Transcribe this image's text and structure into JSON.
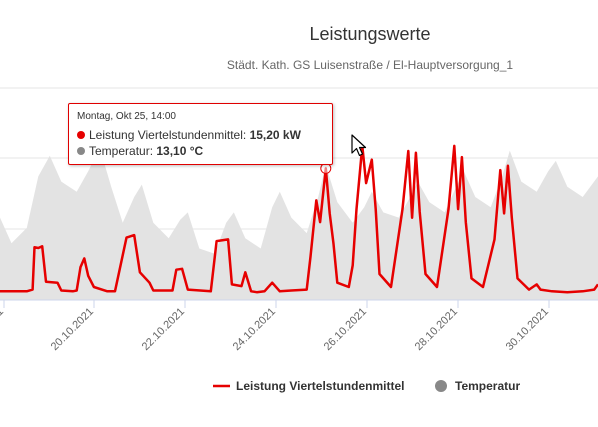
{
  "chart_data": {
    "type": "line",
    "title": "Leistungswerte",
    "subtitle": "Städt. Kath. GS Luisenstraße / El-Hauptversorgung_1",
    "x_tick_labels": [
      "20.10.2021",
      "22.10.2021",
      "24.10.2021",
      "26.10.2021",
      "28.10.2021",
      "30.10.2021"
    ],
    "x_start": "2021-10-18T12:00",
    "x_end": "2021-10-31T12:00",
    "grid": true,
    "series": [
      {
        "name": "Leistung Viertelstundenmittel",
        "unit": "kW",
        "color": "#e60000",
        "chart_type": "line",
        "points": [
          [
            "2021-10-18T12:00",
            1.0
          ],
          [
            "2021-10-18T18:00",
            1.0
          ],
          [
            "2021-10-18T20:00",
            1.0
          ],
          [
            "2021-10-19T02:00",
            1.0
          ],
          [
            "2021-10-19T05:00",
            1.2
          ],
          [
            "2021-10-19T06:00",
            6.1
          ],
          [
            "2021-10-19T08:00",
            6.0
          ],
          [
            "2021-10-19T10:00",
            6.2
          ],
          [
            "2021-10-19T12:00",
            2.1
          ],
          [
            "2021-10-19T18:00",
            2.0
          ],
          [
            "2021-10-19T20:00",
            1.1
          ],
          [
            "2021-10-20T02:00",
            1.0
          ],
          [
            "2021-10-20T04:00",
            1.1
          ],
          [
            "2021-10-20T06:00",
            3.8
          ],
          [
            "2021-10-20T08:00",
            4.8
          ],
          [
            "2021-10-20T10:00",
            2.8
          ],
          [
            "2021-10-20T13:00",
            1.5
          ],
          [
            "2021-10-20T20:00",
            1.0
          ],
          [
            "2021-10-21T00:00",
            1.0
          ],
          [
            "2021-10-21T06:00",
            7.2
          ],
          [
            "2021-10-21T10:00",
            7.5
          ],
          [
            "2021-10-21T13:00",
            3.2
          ],
          [
            "2021-10-21T18:00",
            2.0
          ],
          [
            "2021-10-21T20:00",
            1.1
          ],
          [
            "2021-10-22T06:00",
            1.1
          ],
          [
            "2021-10-22T08:00",
            3.5
          ],
          [
            "2021-10-22T11:00",
            3.6
          ],
          [
            "2021-10-22T14:00",
            1.2
          ],
          [
            "2021-10-23T02:00",
            1.0
          ],
          [
            "2021-10-23T05:00",
            6.8
          ],
          [
            "2021-10-23T11:00",
            7.0
          ],
          [
            "2021-10-23T13:00",
            1.8
          ],
          [
            "2021-10-23T18:00",
            1.6
          ],
          [
            "2021-10-23T20:00",
            3.2
          ],
          [
            "2021-10-23T23:00",
            1.0
          ],
          [
            "2021-10-24T02:00",
            0.9
          ],
          [
            "2021-10-24T06:00",
            1.0
          ],
          [
            "2021-10-24T10:00",
            2.0
          ],
          [
            "2021-10-24T14:00",
            1.0
          ],
          [
            "2021-10-24T20:00",
            1.1
          ],
          [
            "2021-10-25T04:00",
            1.2
          ],
          [
            "2021-10-25T06:00",
            5.0
          ],
          [
            "2021-10-25T09:00",
            11.5
          ],
          [
            "2021-10-25T11:00",
            9.0
          ],
          [
            "2021-10-25T14:00",
            15.2
          ],
          [
            "2021-10-25T16:00",
            10.0
          ],
          [
            "2021-10-25T18:00",
            6.5
          ],
          [
            "2021-10-25T20:00",
            2.0
          ],
          [
            "2021-10-26T02:00",
            1.5
          ],
          [
            "2021-10-26T04:00",
            4.0
          ],
          [
            "2021-10-26T06:00",
            10.5
          ],
          [
            "2021-10-26T09:00",
            17.8
          ],
          [
            "2021-10-26T11:00",
            13.5
          ],
          [
            "2021-10-26T14:00",
            16.2
          ],
          [
            "2021-10-26T16:00",
            10.5
          ],
          [
            "2021-10-26T18:00",
            3.0
          ],
          [
            "2021-10-27T00:00",
            1.5
          ],
          [
            "2021-10-27T06:00",
            10.5
          ],
          [
            "2021-10-27T09:00",
            17.2
          ],
          [
            "2021-10-27T11:00",
            9.5
          ],
          [
            "2021-10-27T13:00",
            17.0
          ],
          [
            "2021-10-27T15:00",
            10.2
          ],
          [
            "2021-10-27T18:00",
            3.0
          ],
          [
            "2021-10-28T00:00",
            1.5
          ],
          [
            "2021-10-28T06:00",
            10.5
          ],
          [
            "2021-10-28T09:00",
            17.8
          ],
          [
            "2021-10-28T11:00",
            10.5
          ],
          [
            "2021-10-28T13:00",
            16.5
          ],
          [
            "2021-10-28T15:00",
            9.0
          ],
          [
            "2021-10-28T18:00",
            2.5
          ],
          [
            "2021-10-29T00:00",
            1.5
          ],
          [
            "2021-10-29T06:00",
            7.0
          ],
          [
            "2021-10-29T09:00",
            15.0
          ],
          [
            "2021-10-29T11:00",
            10.0
          ],
          [
            "2021-10-29T13:00",
            15.5
          ],
          [
            "2021-10-29T15:00",
            9.5
          ],
          [
            "2021-10-29T18:00",
            2.5
          ],
          [
            "2021-10-30T00:00",
            1.2
          ],
          [
            "2021-10-30T04:00",
            1.8
          ],
          [
            "2021-10-30T06:00",
            1.2
          ],
          [
            "2021-10-30T12:00",
            1.0
          ],
          [
            "2021-10-30T20:00",
            0.9
          ],
          [
            "2021-10-31T04:00",
            1.0
          ],
          [
            "2021-10-31T10:00",
            1.2
          ],
          [
            "2021-10-31T12:00",
            1.8
          ]
        ]
      },
      {
        "name": "Temperatur",
        "unit": "°C",
        "color": "#888888",
        "chart_type": "area",
        "points": [
          [
            "2021-10-18T12:00",
            8.0
          ],
          [
            "2021-10-18T18:00",
            5.5
          ],
          [
            "2021-10-19T02:00",
            7.0
          ],
          [
            "2021-10-19T08:00",
            12.0
          ],
          [
            "2021-10-19T14:00",
            14.0
          ],
          [
            "2021-10-19T20:00",
            11.5
          ],
          [
            "2021-10-20T04:00",
            10.5
          ],
          [
            "2021-10-20T10:00",
            12.5
          ],
          [
            "2021-10-20T16:00",
            14.8
          ],
          [
            "2021-10-20T22:00",
            11.0
          ],
          [
            "2021-10-21T04:00",
            7.5
          ],
          [
            "2021-10-21T10:00",
            10.0
          ],
          [
            "2021-10-21T14:00",
            11.2
          ],
          [
            "2021-10-21T20:00",
            7.5
          ],
          [
            "2021-10-22T04:00",
            6.0
          ],
          [
            "2021-10-22T10:00",
            7.8
          ],
          [
            "2021-10-22T14:00",
            8.5
          ],
          [
            "2021-10-22T20:00",
            5.0
          ],
          [
            "2021-10-23T04:00",
            4.5
          ],
          [
            "2021-10-23T10:00",
            7.5
          ],
          [
            "2021-10-23T14:00",
            8.5
          ],
          [
            "2021-10-23T20:00",
            6.0
          ],
          [
            "2021-10-24T04:00",
            5.0
          ],
          [
            "2021-10-24T10:00",
            9.0
          ],
          [
            "2021-10-24T14:00",
            10.5
          ],
          [
            "2021-10-24T20:00",
            8.0
          ],
          [
            "2021-10-25T04:00",
            6.5
          ],
          [
            "2021-10-25T10:00",
            10.0
          ],
          [
            "2021-10-25T14:00",
            13.1
          ],
          [
            "2021-10-25T20:00",
            9.5
          ],
          [
            "2021-10-26T04:00",
            7.5
          ],
          [
            "2021-10-26T10:00",
            9.0
          ],
          [
            "2021-10-26T14:00",
            10.5
          ],
          [
            "2021-10-26T20:00",
            8.5
          ],
          [
            "2021-10-27T04:00",
            8.0
          ],
          [
            "2021-10-27T10:00",
            10.0
          ],
          [
            "2021-10-27T14:00",
            11.5
          ],
          [
            "2021-10-27T20:00",
            9.5
          ],
          [
            "2021-10-28T04:00",
            8.5
          ],
          [
            "2021-10-28T10:00",
            11.0
          ],
          [
            "2021-10-28T14:00",
            12.5
          ],
          [
            "2021-10-28T20:00",
            10.0
          ],
          [
            "2021-10-29T04:00",
            9.0
          ],
          [
            "2021-10-29T10:00",
            12.0
          ],
          [
            "2021-10-29T14:00",
            14.5
          ],
          [
            "2021-10-29T20:00",
            11.5
          ],
          [
            "2021-10-30T04:00",
            10.5
          ],
          [
            "2021-10-30T10:00",
            12.5
          ],
          [
            "2021-10-30T14:00",
            13.5
          ],
          [
            "2021-10-30T20:00",
            11.0
          ],
          [
            "2021-10-31T04:00",
            10.0
          ],
          [
            "2021-10-31T12:00",
            12.0
          ]
        ]
      }
    ],
    "tooltip": {
      "date": "Montag, Okt 25, 14:00",
      "rows": [
        {
          "label": "Leistung Viertelstundenmittel:",
          "value": "15,20 kW",
          "color": "#e60000"
        },
        {
          "label": "Temperatur:",
          "value": "13,10 °C",
          "color": "#888888"
        }
      ]
    },
    "legend_position": "bottom-right"
  }
}
